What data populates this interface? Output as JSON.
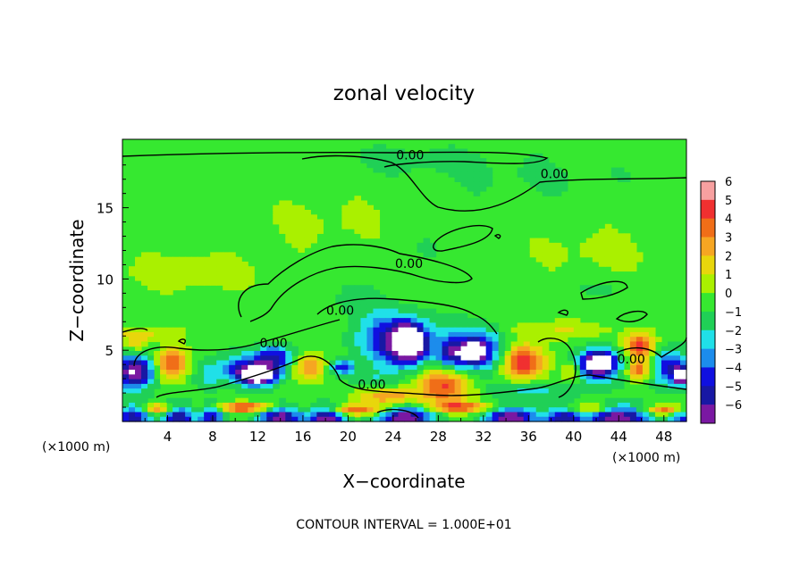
{
  "chart_data": {
    "type": "heatmap",
    "title": "zonal velocity",
    "xlabel": "X−coordinate",
    "ylabel": "Z−coordinate",
    "x_unit_left": "(×1000 m)",
    "x_unit_right": "(×1000 m)",
    "xlim": [
      0,
      50
    ],
    "ylim": [
      0,
      19.8
    ],
    "x_ticks": [
      "4",
      "8",
      "12",
      "16",
      "20",
      "24",
      "28",
      "32",
      "36",
      "40",
      "44",
      "48"
    ],
    "y_ticks": [
      "5",
      "10",
      "15"
    ],
    "colorbar_levels": [
      "6",
      "5",
      "4",
      "3",
      "2",
      "1",
      "0",
      "−1",
      "−2",
      "−3",
      "−4",
      "−5",
      "−6"
    ],
    "colorbar_colors": [
      "#f7a0a0",
      "#f03030",
      "#f06e18",
      "#f6a622",
      "#e8d60c",
      "#aaf000",
      "#36e830",
      "#20d056",
      "#20e0e8",
      "#1c8cec",
      "#1010e0",
      "#1818a4",
      "#7a18a2"
    ],
    "contour_labels": [
      {
        "text": "0.00",
        "x": 25.5,
        "y": 18.7
      },
      {
        "text": "0.00",
        "x": 38.3,
        "y": 17.4
      },
      {
        "text": "0.00",
        "x": 25.4,
        "y": 11.1
      },
      {
        "text": "0.00",
        "x": 19.3,
        "y": 7.8
      },
      {
        "text": "0.00",
        "x": 13.4,
        "y": 5.5
      },
      {
        "text": "0.00",
        "x": 22.1,
        "y": 2.6
      },
      {
        "text": "0.00",
        "x": 45.1,
        "y": 4.4
      }
    ],
    "footer": "CONTOUR INTERVAL = 1.000E+01",
    "field_blobs": [
      {
        "x": 25.5,
        "z": 18.4,
        "rx": 6,
        "rz": 0.9,
        "v": -0.9
      },
      {
        "x": 36,
        "z": 17.2,
        "rx": 10,
        "rz": 1.5,
        "v": -0.6
      },
      {
        "x": 28,
        "z": 12.3,
        "rx": 3,
        "rz": 1,
        "v": -0.5
      },
      {
        "x": 6,
        "z": 10.5,
        "rx": 6,
        "rz": 1.2,
        "v": 1.3
      },
      {
        "x": 42,
        "z": 12,
        "rx": 6,
        "rz": 1.6,
        "v": 0.8
      },
      {
        "x": 18,
        "z": 14,
        "rx": 6,
        "rz": 2,
        "v": 0.7
      },
      {
        "x": 20,
        "z": 8.5,
        "rx": 4,
        "rz": 1.2,
        "v": -0.7
      },
      {
        "x": 42.5,
        "z": 9.3,
        "rx": 3,
        "rz": 0.6,
        "v": -0.6
      },
      {
        "x": 1.2,
        "z": 5.5,
        "rx": 1,
        "rz": 0.7,
        "v": 2.4
      },
      {
        "x": 1,
        "z": 3.5,
        "rx": 1.7,
        "rz": 1.2,
        "v": -7
      },
      {
        "x": 4.3,
        "z": 4,
        "rx": 1.4,
        "rz": 1.1,
        "v": 4.8
      },
      {
        "x": 7.5,
        "z": 3.2,
        "rx": 1.3,
        "rz": 1.0,
        "v": -1.8
      },
      {
        "x": 11.5,
        "z": 3.7,
        "rx": 2.6,
        "rz": 1.0,
        "v": -5
      },
      {
        "x": 12,
        "z": 3.2,
        "rx": 1.5,
        "rz": 0.6,
        "v": -7.2
      },
      {
        "x": 13.5,
        "z": 4.6,
        "rx": 1.5,
        "rz": 0.8,
        "v": -4
      },
      {
        "x": 16.5,
        "z": 3.8,
        "rx": 1.4,
        "rz": 0.9,
        "v": 3.7
      },
      {
        "x": 19.5,
        "z": 3.8,
        "rx": 1,
        "rz": 0.5,
        "v": -4
      },
      {
        "x": 24,
        "z": 5.7,
        "rx": 3,
        "rz": 1.8,
        "v": -5
      },
      {
        "x": 25.5,
        "z": 5.5,
        "rx": 1.5,
        "rz": 1.3,
        "v": -7.5
      },
      {
        "x": 31.5,
        "z": 5,
        "rx": 2.5,
        "rz": 1.6,
        "v": -5
      },
      {
        "x": 31,
        "z": 4.9,
        "rx": 1,
        "rz": 0.6,
        "v": -6.5
      },
      {
        "x": 29,
        "z": 4.8,
        "rx": 1.2,
        "rz": 1.2,
        "v": -3.5
      },
      {
        "x": 28.5,
        "z": 2.5,
        "rx": 2.5,
        "rz": 1.3,
        "v": 4.6
      },
      {
        "x": 23.5,
        "z": 1.7,
        "rx": 2.5,
        "rz": 0.6,
        "v": 3.3
      },
      {
        "x": 35.5,
        "z": 4.2,
        "rx": 2,
        "rz": 1.2,
        "v": 5.4
      },
      {
        "x": 39.8,
        "z": 3.5,
        "rx": 1,
        "rz": 0.8,
        "v": 3
      },
      {
        "x": 42,
        "z": 3.8,
        "rx": 2.3,
        "rz": 1.2,
        "v": -5
      },
      {
        "x": 42.3,
        "z": 4.2,
        "rx": 1.1,
        "rz": 0.6,
        "v": -7.2
      },
      {
        "x": 45.8,
        "z": 5.3,
        "rx": 1.3,
        "rz": 0.8,
        "v": 5.5
      },
      {
        "x": 45.8,
        "z": 3.6,
        "rx": 1.2,
        "rz": 0.7,
        "v": 4.4
      },
      {
        "x": 48.5,
        "z": 3.8,
        "rx": 1.6,
        "rz": 1.3,
        "v": -4.5
      },
      {
        "x": 49.5,
        "z": 3.2,
        "rx": 0.6,
        "rz": 0.6,
        "v": -7.5
      },
      {
        "x": 38.5,
        "z": 6.4,
        "rx": 5,
        "rz": 0.6,
        "v": 1.5
      },
      {
        "x": 2,
        "z": 6.2,
        "rx": 3,
        "rz": 0.5,
        "v": 1.6
      },
      {
        "x": 36,
        "z": 2.2,
        "rx": 3.3,
        "rz": 0.6,
        "v": -2
      },
      {
        "x": 22,
        "z": 3,
        "rx": 2,
        "rz": 0.6,
        "v": -1.2
      },
      {
        "x": 1,
        "z": 0.3,
        "rx": 1.5,
        "rz": 0.9,
        "v": -5.5
      },
      {
        "x": 5,
        "z": 0.3,
        "rx": 1.3,
        "rz": 0.9,
        "v": -5.5
      },
      {
        "x": 8,
        "z": 0.3,
        "rx": 1.1,
        "rz": 0.9,
        "v": -5
      },
      {
        "x": 14,
        "z": 0.2,
        "rx": 1.8,
        "rz": 0.9,
        "v": -6.5
      },
      {
        "x": 18,
        "z": 0.2,
        "rx": 1.5,
        "rz": 0.8,
        "v": -6.5
      },
      {
        "x": 25,
        "z": 0.3,
        "rx": 2.5,
        "rz": 0.8,
        "v": -6.5
      },
      {
        "x": 34.5,
        "z": 0.2,
        "rx": 2.2,
        "rz": 0.8,
        "v": -6.5
      },
      {
        "x": 39,
        "z": 0.2,
        "rx": 1.5,
        "rz": 0.8,
        "v": -5
      },
      {
        "x": 44,
        "z": 0.3,
        "rx": 2.8,
        "rz": 0.8,
        "v": -6.5
      },
      {
        "x": 49.5,
        "z": 0.3,
        "rx": 1,
        "rz": 0.6,
        "v": -4
      },
      {
        "x": 11,
        "z": 1,
        "rx": 3,
        "rz": 0.35,
        "v": 5
      },
      {
        "x": 21,
        "z": 0.8,
        "rx": 3,
        "rz": 0.35,
        "v": 4.5
      },
      {
        "x": 30,
        "z": 1,
        "rx": 3,
        "rz": 0.35,
        "v": 4.2
      },
      {
        "x": 41.5,
        "z": 0.9,
        "rx": 2,
        "rz": 0.35,
        "v": 3.5
      },
      {
        "x": 48,
        "z": 0.8,
        "rx": 2,
        "rz": 0.35,
        "v": 4.5
      },
      {
        "x": 3,
        "z": 0.9,
        "rx": 2,
        "rz": 0.35,
        "v": 4
      }
    ]
  }
}
